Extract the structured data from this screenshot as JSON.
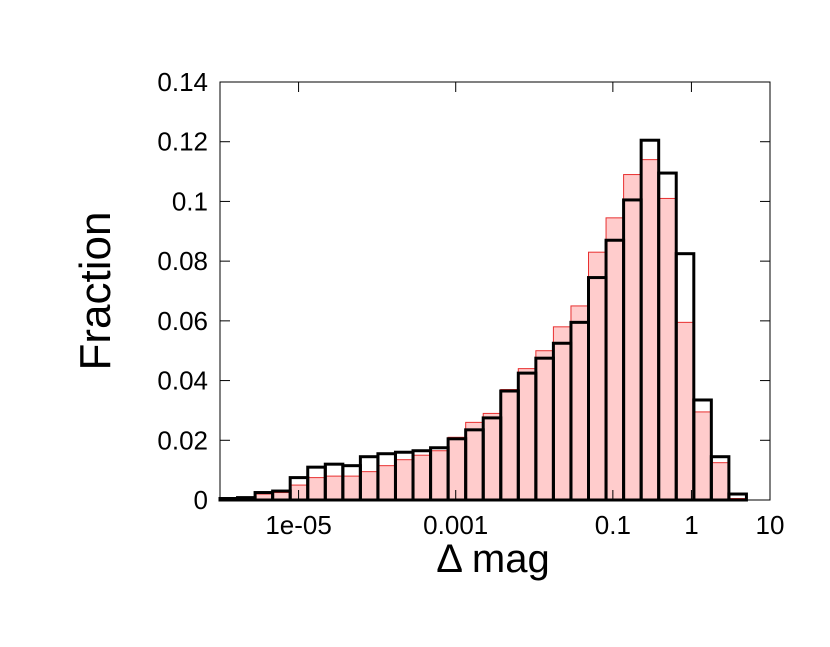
{
  "chart_data": {
    "type": "histogram",
    "xlabel": "Δ mag",
    "ylabel": "Fraction",
    "xscale": "log",
    "xlim": [
      1e-06,
      10
    ],
    "ylim": [
      0,
      0.14
    ],
    "xticks": [
      {
        "value": 1e-05,
        "label": "1e-05"
      },
      0.001,
      0.1,
      1,
      10
    ],
    "yticks": [
      0,
      0.02,
      0.04,
      0.06,
      0.08,
      0.1,
      0.12,
      0.14
    ],
    "bins": [
      1e-06,
      1.672e-06,
      2.796e-06,
      4.677e-06,
      7.822e-06,
      1.308e-05,
      2.188e-05,
      3.659e-05,
      6.119e-05,
      0.0001023,
      0.0001711,
      0.0002862,
      0.0004786,
      0.0008004,
      0.001339,
      0.002239,
      0.003744,
      0.006261,
      0.01047,
      0.01751,
      0.02929,
      0.04898,
      0.0819,
      0.137,
      0.2291,
      0.3831,
      0.6406,
      1.072,
      1.792,
      2.997,
      5.012
    ],
    "series": [
      {
        "color": "#ffcccc",
        "edge": "#e83030",
        "style": "filled",
        "values": [
          0.0003,
          0.0005,
          0.002,
          0.0025,
          0.005,
          0.0075,
          0.008,
          0.008,
          0.0095,
          0.0115,
          0.0135,
          0.015,
          0.0165,
          0.021,
          0.026,
          0.029,
          0.037,
          0.044,
          0.05,
          0.058,
          0.065,
          0.083,
          0.0945,
          0.109,
          0.114,
          0.101,
          0.0595,
          0.0295,
          0.0125,
          0.0005
        ]
      },
      {
        "color": "#000000",
        "style": "outline",
        "values": [
          0.0005,
          0.0008,
          0.0025,
          0.003,
          0.0075,
          0.011,
          0.012,
          0.0115,
          0.0145,
          0.0155,
          0.016,
          0.0165,
          0.0175,
          0.0205,
          0.0235,
          0.0275,
          0.0365,
          0.0425,
          0.0475,
          0.0525,
          0.0595,
          0.0745,
          0.087,
          0.1005,
          0.1205,
          0.1095,
          0.0825,
          0.0335,
          0.0145,
          0.002
        ]
      }
    ]
  }
}
